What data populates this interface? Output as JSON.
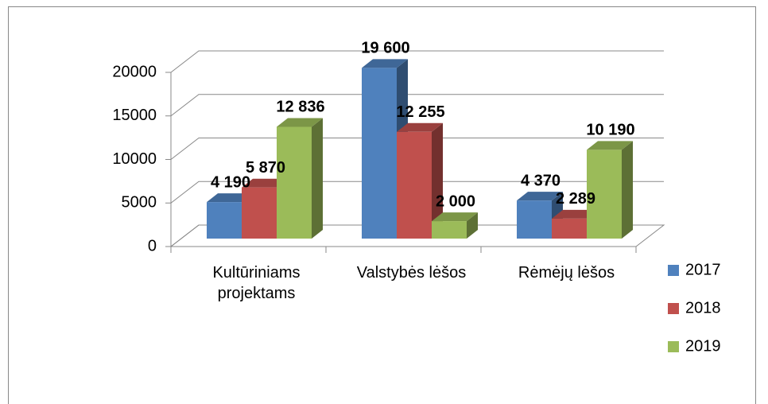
{
  "chart_data": {
    "type": "bar3d",
    "categories": [
      "Kultūriniams projektams",
      "Valstybės lėšos",
      "Rėmėjų lėšos"
    ],
    "series": [
      {
        "name": "2017",
        "color": "#4f81bd",
        "values": [
          4190,
          19600,
          4370
        ],
        "value_labels": [
          "4 190",
          "19 600",
          "4 370"
        ]
      },
      {
        "name": "2018",
        "color": "#c0504d",
        "values": [
          5870,
          12255,
          2289
        ],
        "value_labels": [
          "5 870",
          "12 255",
          "2 289"
        ]
      },
      {
        "name": "2019",
        "color": "#9bbb59",
        "values": [
          12836,
          2000,
          10190
        ],
        "value_labels": [
          "12 836",
          "2 000",
          "10 190"
        ]
      }
    ],
    "ylim": [
      0,
      20000
    ],
    "yticks": [
      0,
      5000,
      10000,
      15000,
      20000
    ],
    "grid": true,
    "legend": "right"
  }
}
